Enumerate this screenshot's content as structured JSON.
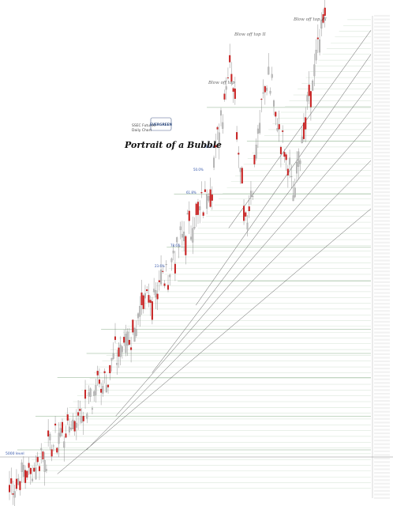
{
  "chart_data": {
    "type": "candlestick",
    "title": "Portrait of a Bubble",
    "legend": "SSEC Futures\nDaily Chart",
    "logo_text": "EVERGREEN",
    "ylim": [
      0,
      100
    ],
    "annotations": [
      {
        "id": "blowoff3",
        "text": "Blow off top III",
        "color": "#666666",
        "italic": true
      },
      {
        "id": "blowoff2",
        "text": "Blow off top II",
        "color": "#666666",
        "italic": true
      },
      {
        "id": "blowoff1",
        "text": "Blow off top",
        "color": "#666666",
        "italic": true
      },
      {
        "id": "pct1",
        "text": "38.2%",
        "color": "#3355aa"
      },
      {
        "id": "pct2",
        "text": "50.0%",
        "color": "#3355aa"
      },
      {
        "id": "pct3",
        "text": "61.8%",
        "color": "#3355aa"
      },
      {
        "id": "pct4",
        "text": "78.6%",
        "color": "#3355aa"
      },
      {
        "id": "pct5",
        "text": "23.6%",
        "color": "#3355aa"
      },
      {
        "id": "sss",
        "text": "5000 level",
        "color": "#3355aa"
      }
    ],
    "levels": [
      {
        "price": 74,
        "start": 0.66
      },
      {
        "price": 81,
        "start": 0.55
      },
      {
        "price": 63,
        "start": 0.46
      },
      {
        "price": 52,
        "start": 0.44
      },
      {
        "price": 45,
        "start": 0.47
      },
      {
        "price": 30,
        "start": 0.22
      },
      {
        "price": 35,
        "start": 0.26
      },
      {
        "price": 25,
        "start": 0.14
      },
      {
        "price": 17,
        "start": 0.08
      },
      {
        "price": 10,
        "start": 0.03
      }
    ],
    "trendlines": [
      {
        "x0": 0.14,
        "y0": 5,
        "x1": 1.0,
        "y1": 60
      },
      {
        "x0": 0.22,
        "y0": 10,
        "x1": 1.0,
        "y1": 70
      },
      {
        "x0": 0.3,
        "y0": 17,
        "x1": 1.0,
        "y1": 78
      },
      {
        "x0": 0.4,
        "y0": 26,
        "x1": 1.0,
        "y1": 86
      },
      {
        "x0": 0.52,
        "y0": 40,
        "x1": 1.0,
        "y1": 92
      },
      {
        "x0": 0.61,
        "y0": 56,
        "x1": 1.0,
        "y1": 97
      }
    ],
    "series_note": "Candles generated: grey = up day, red = down day"
  },
  "ui": {
    "legend_line1": "SSEC Futures",
    "legend_line2": "Daily Chart"
  }
}
